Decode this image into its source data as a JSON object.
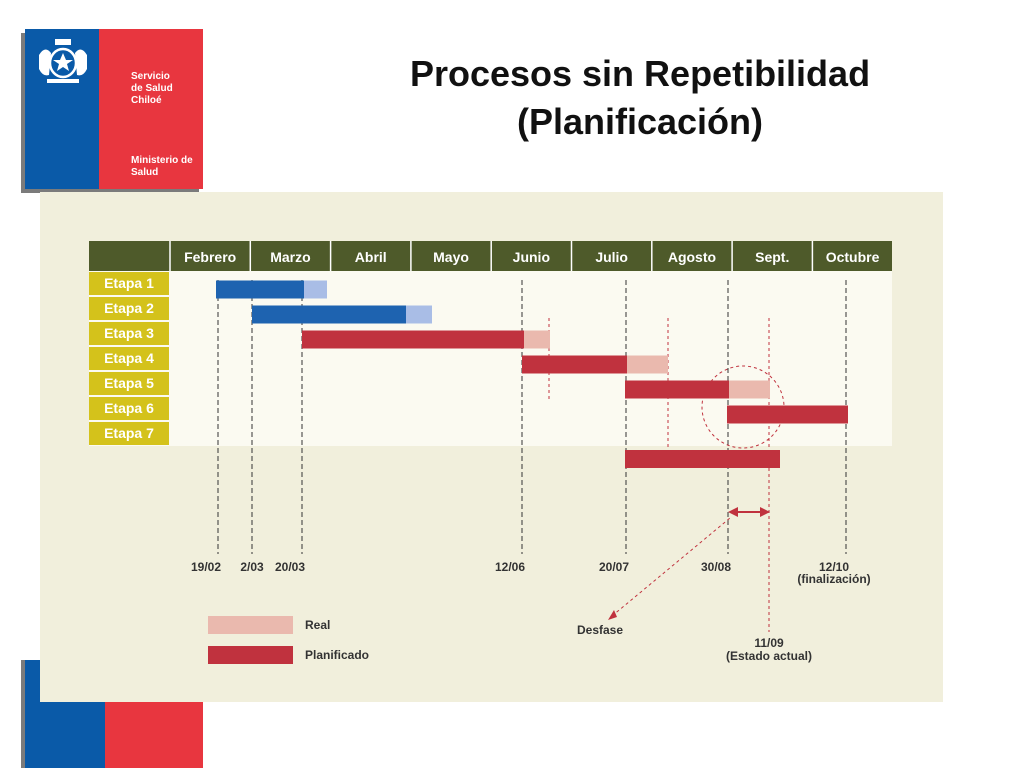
{
  "header": {
    "title_line1": "Procesos sin Repetibilidad",
    "title_line2": "(Planificación)"
  },
  "logo": {
    "org_line1": "Servicio",
    "org_line2": "de Salud Chiloé",
    "ministry_line1": "Ministerio de",
    "ministry_line2": "Salud"
  },
  "colors": {
    "month_header": "#4e5a2a",
    "stage_label": "#d4c21b",
    "stage_bar_blue": "#1e63b0",
    "stage_bar_blue_light": "#a9bde6",
    "planned": "#c0323e",
    "real": "#eab9ae"
  },
  "diagram": {
    "months": [
      "Febrero",
      "Marzo",
      "Abril",
      "Mayo",
      "Junio",
      "Julio",
      "Agosto",
      "Sept.",
      "Octubre"
    ],
    "stages": [
      "Etapa 1",
      "Etapa 2",
      "Etapa 3",
      "Etapa 4",
      "Etapa 5",
      "Etapa 6",
      "Etapa 7"
    ],
    "milestones": [
      {
        "label": "19/02"
      },
      {
        "label": "2/03"
      },
      {
        "label": "20/03"
      },
      {
        "label": "12/06"
      },
      {
        "label": "20/07"
      },
      {
        "label": "30/08"
      },
      {
        "label": "12/10",
        "note": "(finalización)"
      }
    ],
    "current": {
      "label": "11/09",
      "note": "(Estado actual)"
    },
    "desfase_label": "Desfase",
    "legend": [
      {
        "label": "Real",
        "color": "#eab9ae"
      },
      {
        "label": "Planificado",
        "color": "#c0323e"
      }
    ]
  }
}
